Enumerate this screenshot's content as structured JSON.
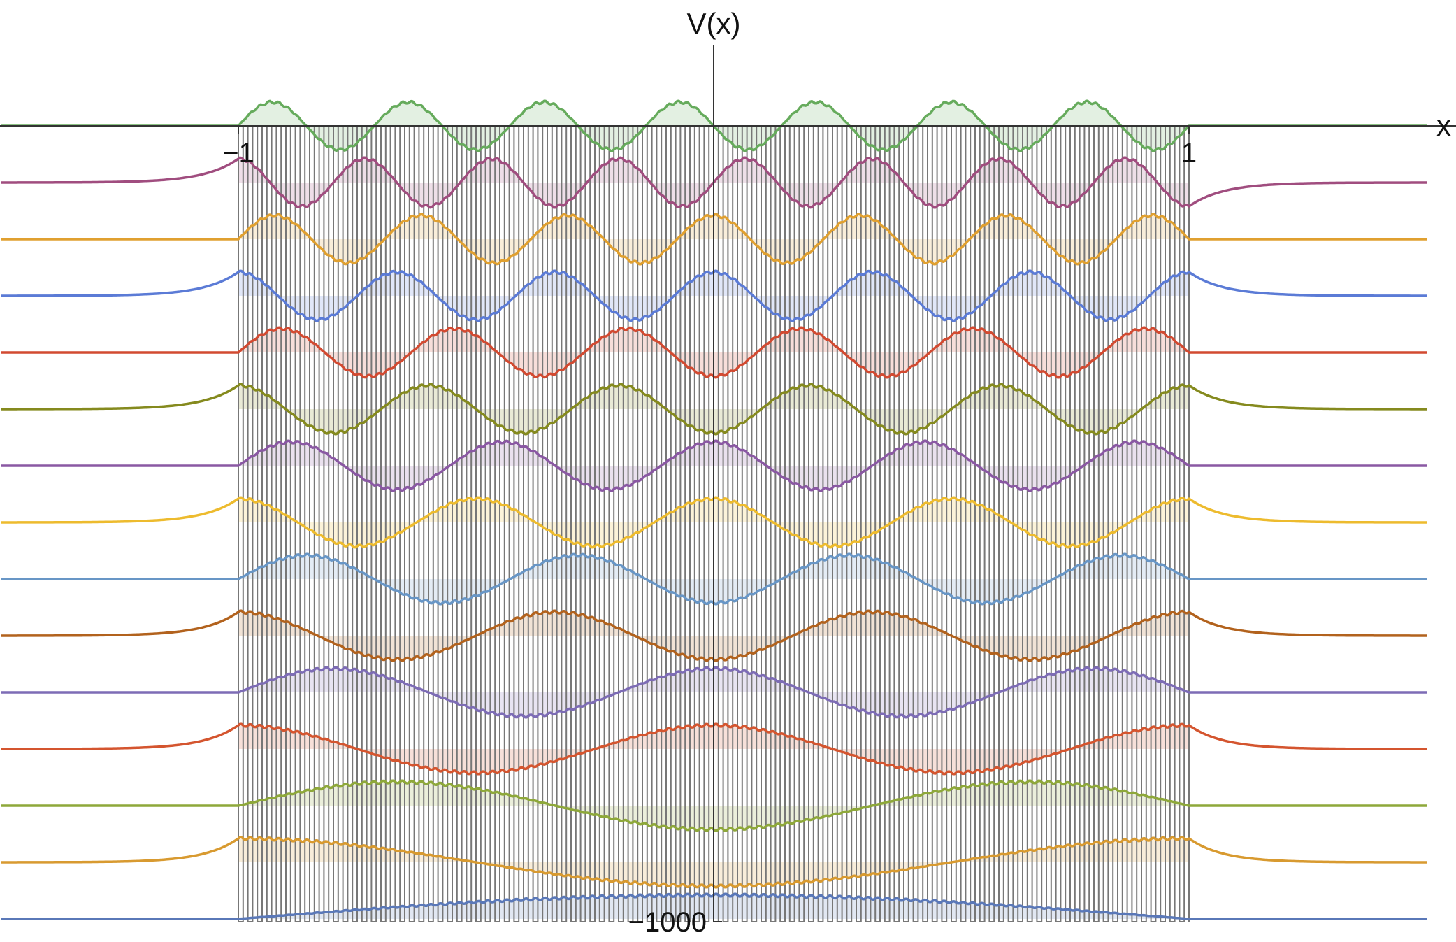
{
  "chart_data": {
    "type": "line",
    "title": "",
    "xlabel": "x",
    "ylabel": "V(x)",
    "xlim": [
      -1.5,
      1.5
    ],
    "x_tick_labels": [
      "−1",
      "1"
    ],
    "x_ticks": [
      -1,
      1
    ],
    "y_tick_labels": [
      "−1000"
    ],
    "y_ticks": [
      -1000
    ],
    "grid": false,
    "legend": "none",
    "potential": {
      "kind": "periodic well (comb of barriers)",
      "support": [
        -1,
        1
      ],
      "barrier_count": 100,
      "bottom": -1000,
      "top": 0,
      "color": "#777777"
    },
    "series": [
      {
        "level": 15,
        "color": "#66ab5c",
        "wells": 7,
        "lobes": 13,
        "top_edge": true
      },
      {
        "level": 14,
        "color": "#a04d7f",
        "wells": 7,
        "lobes": 14
      },
      {
        "level": 13,
        "color": "#e0a030",
        "wells": 6,
        "lobes": 12
      },
      {
        "level": 12,
        "color": "#5b7bd6",
        "wells": 6,
        "lobes": 11
      },
      {
        "level": 11,
        "color": "#d24a31",
        "wells": 5,
        "lobes": 10
      },
      {
        "level": 10,
        "color": "#858a1e",
        "wells": 5,
        "lobes": 9
      },
      {
        "level": 9,
        "color": "#8a58a3",
        "wells": 4,
        "lobes": 8
      },
      {
        "level": 8,
        "color": "#edbb2e",
        "wells": 4,
        "lobes": 7
      },
      {
        "level": 7,
        "color": "#6896c6",
        "wells": 3,
        "lobes": 6
      },
      {
        "level": 6,
        "color": "#b2621d",
        "wells": 3,
        "lobes": 5
      },
      {
        "level": 5,
        "color": "#7d6cb5",
        "wells": 2,
        "lobes": 4
      },
      {
        "level": 4,
        "color": "#d4552f",
        "wells": 2,
        "lobes": 3
      },
      {
        "level": 3,
        "color": "#8ea83a",
        "wells": 1,
        "lobes": 2
      },
      {
        "level": 2,
        "color": "#d89a30",
        "wells": 1,
        "lobes": 1
      },
      {
        "level": 1,
        "color": "#5a78b8",
        "wells": 0,
        "lobes": 0
      }
    ],
    "fill_colors": {
      "default": "#66ab5c"
    }
  }
}
